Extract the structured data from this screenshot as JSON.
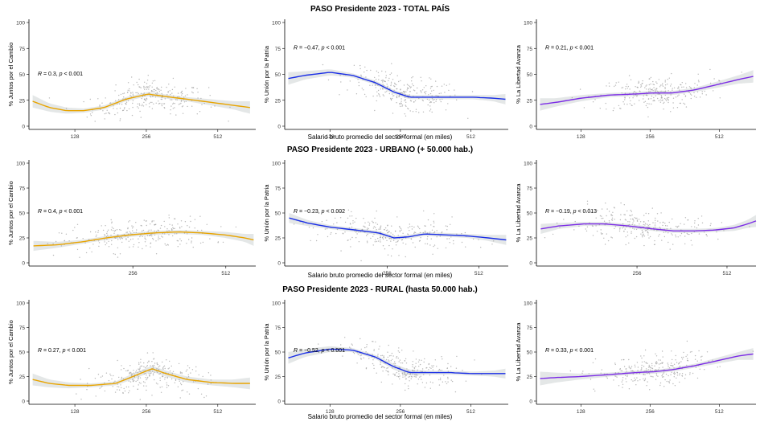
{
  "colors": {
    "Juntos por el Cambio": "#e8a400",
    "Unión por la Patria": "#1a2ee6",
    "La Libertad Avanza": "#7b2be6",
    "ribbon": "#dfe3e3",
    "points": "#9a9a9a"
  },
  "chart_data": [
    {
      "row_title": "PASO Presidente 2023 - TOTAL PAÍS",
      "xlabel": "Salario bruto promedio del sector formal (en miles)",
      "x_scale": "log2",
      "xlim": [
        82,
        740
      ],
      "x_ticks": [
        128,
        256,
        512
      ],
      "panels": [
        {
          "type": "scatter",
          "ylabel": "% Juntos por el Cambio",
          "ylim": [
            0,
            100
          ],
          "y_ticks": [
            0,
            25,
            50,
            75,
            100
          ],
          "annotation": {
            "r_value": "0.3",
            "p_value": "0.001"
          },
          "smooth": {
            "x": [
              85,
              100,
              118,
              140,
              170,
              210,
              260,
              300,
              380,
              480,
              600,
              700
            ],
            "y": [
              24,
              18,
              15,
              15,
              18,
              26,
              31,
              29,
              26,
              23,
              20,
              18
            ],
            "se": [
              6,
              4,
              3,
              2,
              2,
              2,
              2,
              2,
              2,
              3,
              4,
              6
            ]
          }
        },
        {
          "type": "scatter",
          "ylabel": "% Unión por la Patria",
          "ylim": [
            0,
            100
          ],
          "y_ticks": [
            0,
            25,
            50,
            75,
            100
          ],
          "annotation": {
            "r_value": "−0.47",
            "p_value": "0.001"
          },
          "smooth": {
            "x": [
              85,
              100,
              128,
              160,
              200,
              240,
              280,
              340,
              420,
              520,
              640,
              720
            ],
            "y": [
              46,
              49,
              52,
              49,
              42,
              33,
              28,
              28,
              28,
              28,
              27,
              26
            ],
            "se": [
              6,
              4,
              3,
              2,
              2,
              2,
              2,
              2,
              2,
              2,
              3,
              5
            ]
          }
        },
        {
          "type": "scatter",
          "ylabel": "% La Libertad Avanza",
          "ylim": [
            0,
            100
          ],
          "y_ticks": [
            0,
            25,
            50,
            75,
            100
          ],
          "annotation": {
            "r_value": "0.21",
            "p_value": "0.001"
          },
          "smooth": {
            "x": [
              85,
              100,
              128,
              170,
              220,
              260,
              320,
              400,
              500,
              620,
              720
            ],
            "y": [
              21,
              23,
              27,
              30,
              31,
              32,
              32,
              35,
              40,
              45,
              48
            ],
            "se": [
              6,
              4,
              3,
              2,
              2,
              2,
              2,
              2,
              3,
              4,
              6
            ]
          }
        }
      ]
    },
    {
      "row_title": "PASO Presidente 2023 - URBANO (+ 50.000 hab.)",
      "xlabel": "Salario bruto promedio del sector formal (en miles)",
      "x_scale": "log2",
      "xlim": [
        118,
        640
      ],
      "x_ticks": [
        256,
        512
      ],
      "panels": [
        {
          "type": "scatter",
          "ylabel": "% Juntos por el Cambio",
          "ylim": [
            0,
            100
          ],
          "y_ticks": [
            0,
            25,
            50,
            75,
            100
          ],
          "annotation": {
            "r_value": "0.4",
            "p_value": "0.001"
          },
          "smooth": {
            "x": [
              122,
              145,
              175,
              210,
              250,
              300,
              360,
              430,
              510,
              590,
              630
            ],
            "y": [
              17,
              18,
              21,
              25,
              28,
              30,
              31,
              30,
              28,
              25,
              23
            ],
            "se": [
              5,
              3,
              2,
              2,
              2,
              2,
              2,
              2,
              3,
              4,
              6
            ]
          }
        },
        {
          "type": "scatter",
          "ylabel": "% Unión por la Patria",
          "ylim": [
            0,
            100
          ],
          "y_ticks": [
            0,
            25,
            50,
            75,
            100
          ],
          "annotation": {
            "r_value": "−0.23",
            "p_value": "0.002"
          },
          "smooth": {
            "x": [
              122,
              140,
              165,
              200,
              240,
              270,
              300,
              340,
              400,
              470,
              550,
              630
            ],
            "y": [
              45,
              40,
              36,
              33,
              30,
              25,
              26,
              29,
              28,
              27,
              25,
              23
            ],
            "se": [
              5,
              3,
              2,
              2,
              2,
              2,
              2,
              2,
              2,
              2,
              3,
              5
            ]
          }
        },
        {
          "type": "scatter",
          "ylabel": "% La Libertad Avanza",
          "ylim": [
            0,
            100
          ],
          "y_ticks": [
            0,
            25,
            50,
            75,
            100
          ],
          "annotation": {
            "r_value": "−0.19",
            "p_value": "0.013"
          },
          "smooth": {
            "x": [
              122,
              140,
              170,
              200,
              240,
              290,
              340,
              400,
              470,
              540,
              600,
              640
            ],
            "y": [
              34,
              37,
              39,
              39,
              37,
              34,
              32,
              32,
              33,
              35,
              39,
              42
            ],
            "se": [
              5,
              3,
              2,
              2,
              2,
              2,
              2,
              2,
              2,
              3,
              4,
              6
            ]
          }
        }
      ]
    },
    {
      "row_title": "PASO Presidente 2023 - RURAL (hasta 50.000 hab.)",
      "xlabel": "Salario bruto promedio del sector formal (en miles)",
      "x_scale": "log2",
      "xlim": [
        82,
        740
      ],
      "x_ticks": [
        128,
        256,
        512
      ],
      "panels": [
        {
          "type": "scatter",
          "ylabel": "% Juntos por el Cambio",
          "ylim": [
            0,
            100
          ],
          "y_ticks": [
            0,
            25,
            50,
            75,
            100
          ],
          "annotation": {
            "r_value": "0.27",
            "p_value": "0.001"
          },
          "smooth": {
            "x": [
              85,
              100,
              120,
              150,
              190,
              230,
              270,
              310,
              380,
              480,
              600,
              700
            ],
            "y": [
              22,
              18,
              16,
              16,
              18,
              26,
              33,
              28,
              22,
              19,
              18,
              18
            ],
            "se": [
              6,
              4,
              3,
              2,
              2,
              3,
              3,
              3,
              3,
              3,
              4,
              6
            ]
          }
        },
        {
          "type": "scatter",
          "ylabel": "% Unión por la Patria",
          "ylim": [
            0,
            100
          ],
          "y_ticks": [
            0,
            25,
            50,
            75,
            100
          ],
          "annotation": {
            "r_value": "−0.52",
            "p_value": "0.001"
          },
          "smooth": {
            "x": [
              85,
              100,
              128,
              160,
              200,
              240,
              280,
              340,
              420,
              520,
              640,
              720
            ],
            "y": [
              44,
              49,
              53,
              52,
              45,
              35,
              29,
              29,
              29,
              28,
              28,
              28
            ],
            "se": [
              6,
              4,
              3,
              2,
              2,
              3,
              3,
              2,
              2,
              2,
              3,
              5
            ]
          }
        },
        {
          "type": "scatter",
          "ylabel": "% La Libertad Avanza",
          "ylim": [
            0,
            100
          ],
          "y_ticks": [
            0,
            25,
            50,
            75,
            100
          ],
          "annotation": {
            "r_value": "0.33",
            "p_value": "0.001"
          },
          "smooth": {
            "x": [
              85,
              100,
              128,
              170,
              220,
              270,
              320,
              400,
              500,
              620,
              720
            ],
            "y": [
              23,
              24,
              25,
              27,
              29,
              30,
              32,
              36,
              41,
              46,
              48
            ],
            "se": [
              7,
              5,
              3,
              2,
              2,
              2,
              2,
              2,
              3,
              4,
              6
            ]
          }
        }
      ]
    }
  ]
}
